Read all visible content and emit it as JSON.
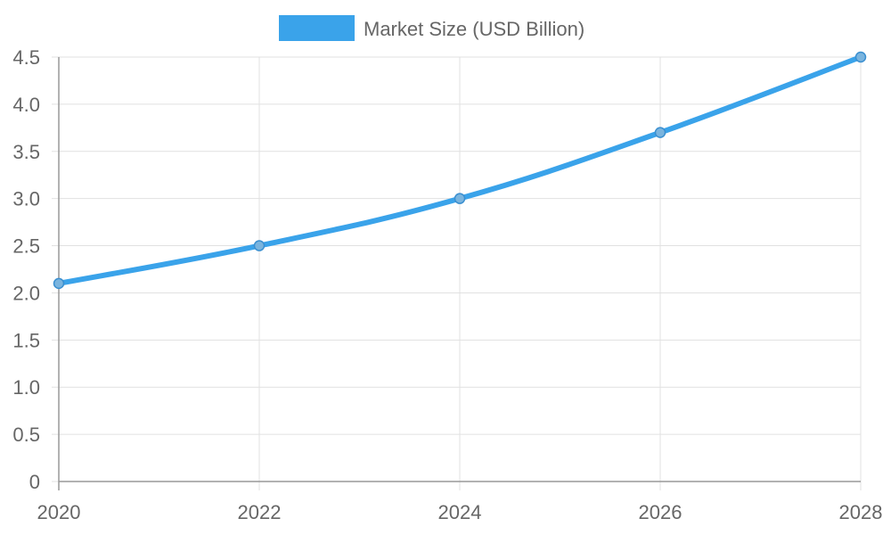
{
  "chart_data": {
    "type": "line",
    "x": [
      "2020",
      "2022",
      "2024",
      "2026",
      "2028"
    ],
    "series": [
      {
        "name": "Market Size (USD Billion)",
        "values": [
          2.1,
          2.5,
          3.0,
          3.7,
          4.5
        ]
      }
    ],
    "xlabel": "",
    "ylabel": "",
    "ylim": [
      0,
      4.5
    ],
    "y_ticks": [
      "0",
      "0.5",
      "1.0",
      "1.5",
      "2.0",
      "2.5",
      "3.0",
      "3.5",
      "4.0",
      "4.5"
    ],
    "grid": true,
    "legend_position": "top-center",
    "colors": {
      "line": "#3aa3ea",
      "point_fill": "#7ab4de",
      "point_stroke": "#3a8fd0",
      "grid": "#e1e1e1",
      "axis": "#999999",
      "text": "#666666"
    }
  }
}
